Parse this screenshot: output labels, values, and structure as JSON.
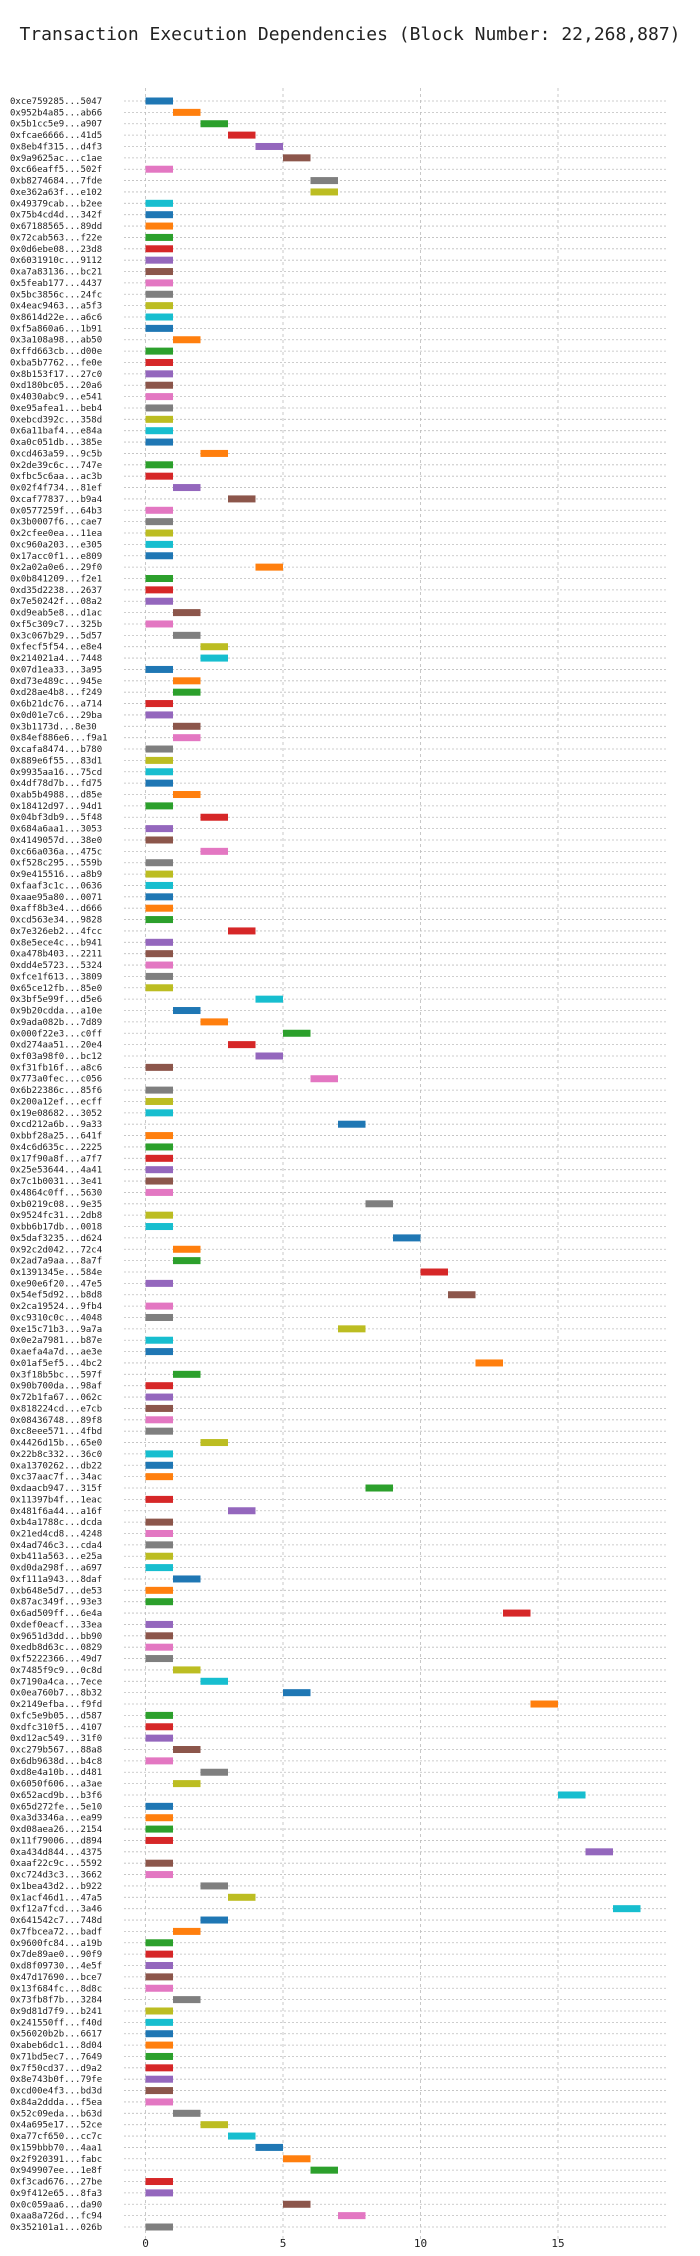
{
  "chart_data": {
    "type": "bar",
    "title": "Transaction Execution Dependencies (Block Number: 22,268,887)",
    "xlabel": "",
    "ylabel": "",
    "xlim": [
      -1,
      19
    ],
    "xticks": [
      0,
      5,
      10,
      15
    ],
    "grid": true,
    "legend": "none",
    "colors": [
      "#1f77b4",
      "#ff7f0e",
      "#2ca02c",
      "#d62728",
      "#9467bd",
      "#8c564b",
      "#e377c2",
      "#7f7f7f",
      "#bcbd22",
      "#17becf"
    ],
    "transactions": [
      {
        "label": "0xce759285...5047",
        "start": 0
      },
      {
        "label": "0x952b4a85...ab66",
        "start": 1
      },
      {
        "label": "0x5b1cc5e9...a907",
        "start": 2
      },
      {
        "label": "0xfcae6666...41d5",
        "start": 3
      },
      {
        "label": "0x8eb4f315...d4f3",
        "start": 4
      },
      {
        "label": "0x9a9625ac...c1ae",
        "start": 5
      },
      {
        "label": "0xc66eaff5...502f",
        "start": 0
      },
      {
        "label": "0xb8274684...7fde",
        "start": 6
      },
      {
        "label": "0xe362a63f...e102",
        "start": 6
      },
      {
        "label": "0x49379cab...b2ee",
        "start": 0
      },
      {
        "label": "0x75b4cd4d...342f",
        "start": 0
      },
      {
        "label": "0x67188565...89dd",
        "start": 0
      },
      {
        "label": "0x72cab563...f22e",
        "start": 0
      },
      {
        "label": "0x0d6ebe08...23d8",
        "start": 0
      },
      {
        "label": "0x6031910c...9112",
        "start": 0
      },
      {
        "label": "0xa7a83136...bc21",
        "start": 0
      },
      {
        "label": "0x5feab177...4437",
        "start": 0
      },
      {
        "label": "0x5bc3856c...24fc",
        "start": 0
      },
      {
        "label": "0x4eac9463...a5f3",
        "start": 0
      },
      {
        "label": "0x8614d22e...a6c6",
        "start": 0
      },
      {
        "label": "0xf5a860a6...1b91",
        "start": 0
      },
      {
        "label": "0x3a108a98...ab50",
        "start": 1
      },
      {
        "label": "0xffd663cb...d00e",
        "start": 0
      },
      {
        "label": "0xba5b7762...fe0e",
        "start": 0
      },
      {
        "label": "0x8b153f17...27c0",
        "start": 0
      },
      {
        "label": "0xd180bc05...20a6",
        "start": 0
      },
      {
        "label": "0x4030abc9...e541",
        "start": 0
      },
      {
        "label": "0xe95afea1...beb4",
        "start": 0
      },
      {
        "label": "0xebcd392c...358d",
        "start": 0
      },
      {
        "label": "0x6a11baf4...e84a",
        "start": 0
      },
      {
        "label": "0xa0c051db...385e",
        "start": 0
      },
      {
        "label": "0xcd463a59...9c5b",
        "start": 2
      },
      {
        "label": "0x2de39c6c...747e",
        "start": 0
      },
      {
        "label": "0xfbc5c6aa...ac3b",
        "start": 0
      },
      {
        "label": "0x02f4f734...81ef",
        "start": 1
      },
      {
        "label": "0xcaf77837...b9a4",
        "start": 3
      },
      {
        "label": "0x0577259f...64b3",
        "start": 0
      },
      {
        "label": "0x3b0007f6...cae7",
        "start": 0
      },
      {
        "label": "0x2cfee0ea...11ea",
        "start": 0
      },
      {
        "label": "0xc960a203...e305",
        "start": 0
      },
      {
        "label": "0x17acc0f1...e809",
        "start": 0
      },
      {
        "label": "0x2a02a0e6...29f0",
        "start": 4
      },
      {
        "label": "0x0b841209...f2e1",
        "start": 0
      },
      {
        "label": "0xd35d2238...2637",
        "start": 0
      },
      {
        "label": "0x7e50242f...08a2",
        "start": 0
      },
      {
        "label": "0xd9eab5e8...d1ac",
        "start": 1
      },
      {
        "label": "0xf5c309c7...325b",
        "start": 0
      },
      {
        "label": "0x3c067b29...5d57",
        "start": 1
      },
      {
        "label": "0xfecf5f54...e8e4",
        "start": 2
      },
      {
        "label": "0x214021a4...7448",
        "start": 2
      },
      {
        "label": "0x07d1ea33...3a95",
        "start": 0
      },
      {
        "label": "0xd73e489c...945e",
        "start": 1
      },
      {
        "label": "0xd28ae4b8...f249",
        "start": 1
      },
      {
        "label": "0x6b21dc76...a714",
        "start": 0
      },
      {
        "label": "0x0d01e7c6...29ba",
        "start": 0
      },
      {
        "label": "0x3b1173d...8e30",
        "start": 1
      },
      {
        "label": "0x84ef886e6...f9a1",
        "start": 1
      },
      {
        "label": "0xcafa8474...b780",
        "start": 0
      },
      {
        "label": "0x889e6f55...83d1",
        "start": 0
      },
      {
        "label": "0x9935aa16...75cd",
        "start": 0
      },
      {
        "label": "0x4df78d7b...fd75",
        "start": 0
      },
      {
        "label": "0xab5b4988...d85e",
        "start": 1
      },
      {
        "label": "0x18412d97...94d1",
        "start": 0
      },
      {
        "label": "0x04bf3db9...5f48",
        "start": 2
      },
      {
        "label": "0x684a6aa1...3053",
        "start": 0
      },
      {
        "label": "0x4149057d...38e0",
        "start": 0
      },
      {
        "label": "0xc66a036a...475c",
        "start": 2
      },
      {
        "label": "0xf528c295...559b",
        "start": 0
      },
      {
        "label": "0x9e415516...a8b9",
        "start": 0
      },
      {
        "label": "0xfaaf3c1c...0636",
        "start": 0
      },
      {
        "label": "0xaae95a80...0071",
        "start": 0
      },
      {
        "label": "0xaff8b3e4...d666",
        "start": 0
      },
      {
        "label": "0xcd563e34...9828",
        "start": 0
      },
      {
        "label": "0x7e326eb2...4fcc",
        "start": 3
      },
      {
        "label": "0x8e5ece4c...b941",
        "start": 0
      },
      {
        "label": "0xa478b403...2211",
        "start": 0
      },
      {
        "label": "0xdd4e5723...5324",
        "start": 0
      },
      {
        "label": "0xfce1f613...3809",
        "start": 0
      },
      {
        "label": "0x65ce12fb...85e0",
        "start": 0
      },
      {
        "label": "0x3bf5e99f...d5e6",
        "start": 4
      },
      {
        "label": "0x9b20cdda...a10e",
        "start": 1
      },
      {
        "label": "0x9ada082b...7d89",
        "start": 2
      },
      {
        "label": "0x000f22e3...c0ff",
        "start": 5
      },
      {
        "label": "0xd274aa51...20e4",
        "start": 3
      },
      {
        "label": "0xf03a98f0...bc12",
        "start": 4
      },
      {
        "label": "0xf31fb16f...a8c6",
        "start": 0
      },
      {
        "label": "0x773a0fec...c056",
        "start": 6
      },
      {
        "label": "0x6b22386c...85f6",
        "start": 0
      },
      {
        "label": "0x200a12ef...ecff",
        "start": 0
      },
      {
        "label": "0x19e08682...3052",
        "start": 0
      },
      {
        "label": "0xcd212a6b...9a33",
        "start": 7
      },
      {
        "label": "0xbbf28a25...641f",
        "start": 0
      },
      {
        "label": "0x4c6d635c...2225",
        "start": 0
      },
      {
        "label": "0x17f90a8f...a7f7",
        "start": 0
      },
      {
        "label": "0x25e53644...4a41",
        "start": 0
      },
      {
        "label": "0x7c1b0031...3e41",
        "start": 0
      },
      {
        "label": "0x4864c0ff...5630",
        "start": 0
      },
      {
        "label": "0xb0219c08...9e35",
        "start": 8
      },
      {
        "label": "0x9524fc31...2db8",
        "start": 0
      },
      {
        "label": "0xbb6b17db...0018",
        "start": 0
      },
      {
        "label": "0x5daf3235...d624",
        "start": 9
      },
      {
        "label": "0x92c2d042...72c4",
        "start": 1
      },
      {
        "label": "0x2ad7a9aa...8a7f",
        "start": 1
      },
      {
        "label": "0x1391345e...584e",
        "start": 10
      },
      {
        "label": "0xe90e6f20...47e5",
        "start": 0
      },
      {
        "label": "0x54ef5d92...b8d8",
        "start": 11
      },
      {
        "label": "0x2ca19524...9fb4",
        "start": 0
      },
      {
        "label": "0xc9310c0c...4048",
        "start": 0
      },
      {
        "label": "0xe15c71b3...9a7a",
        "start": 7
      },
      {
        "label": "0x0e2a7981...b87e",
        "start": 0
      },
      {
        "label": "0xaefa4a7d...ae3e",
        "start": 0
      },
      {
        "label": "0x01af5ef5...4bc2",
        "start": 12
      },
      {
        "label": "0x3f18b5bc...597f",
        "start": 1
      },
      {
        "label": "0x90b700da...98af",
        "start": 0
      },
      {
        "label": "0x72b1fa67...062c",
        "start": 0
      },
      {
        "label": "0x818224cd...e7cb",
        "start": 0
      },
      {
        "label": "0x08436748...89f8",
        "start": 0
      },
      {
        "label": "0xc8eee571...4fbd",
        "start": 0
      },
      {
        "label": "0x4426d15b...65e0",
        "start": 2
      },
      {
        "label": "0x22b8c332...36c0",
        "start": 0
      },
      {
        "label": "0xa1370262...db22",
        "start": 0
      },
      {
        "label": "0xc37aac7f...34ac",
        "start": 0
      },
      {
        "label": "0xdaacb947...315f",
        "start": 8
      },
      {
        "label": "0x11397b4f...1eac",
        "start": 0
      },
      {
        "label": "0x481f6a44...a16f",
        "start": 3
      },
      {
        "label": "0xb4a1788c...dcda",
        "start": 0
      },
      {
        "label": "0x21ed4cd8...4248",
        "start": 0
      },
      {
        "label": "0x4ad746c3...cda4",
        "start": 0
      },
      {
        "label": "0xb411a563...e25a",
        "start": 0
      },
      {
        "label": "0xd0da298f...a697",
        "start": 0
      },
      {
        "label": "0xf111a943...8daf",
        "start": 1
      },
      {
        "label": "0xb648e5d7...de53",
        "start": 0
      },
      {
        "label": "0x87ac349f...93e3",
        "start": 0
      },
      {
        "label": "0x6ad509ff...6e4a",
        "start": 13
      },
      {
        "label": "0xdef0eacf...33ea",
        "start": 0
      },
      {
        "label": "0x9651d3dd...bb90",
        "start": 0
      },
      {
        "label": "0xedb8d63c...0829",
        "start": 0
      },
      {
        "label": "0xf5222366...49d7",
        "start": 0
      },
      {
        "label": "0x7485f9c9...0c8d",
        "start": 1
      },
      {
        "label": "0x7190a4ca...7ece",
        "start": 2
      },
      {
        "label": "0x0ea760b7...8b32",
        "start": 5
      },
      {
        "label": "0x2149efba...f9fd",
        "start": 14
      },
      {
        "label": "0xfc5e9b05...d587",
        "start": 0
      },
      {
        "label": "0xdfc310f5...4107",
        "start": 0
      },
      {
        "label": "0xd12ac549...31f0",
        "start": 0
      },
      {
        "label": "0xc279b567...88a8",
        "start": 1
      },
      {
        "label": "0x6db9638d...b4c8",
        "start": 0
      },
      {
        "label": "0xd8e4a10b...d481",
        "start": 2
      },
      {
        "label": "0x6050f606...a3ae",
        "start": 1
      },
      {
        "label": "0x652acd9b...b3f6",
        "start": 15
      },
      {
        "label": "0x65d272fe...5e10",
        "start": 0
      },
      {
        "label": "0xa3d3346a...ea99",
        "start": 0
      },
      {
        "label": "0xd08aea26...2154",
        "start": 0
      },
      {
        "label": "0x11f79006...d894",
        "start": 0
      },
      {
        "label": "0xa434d844...4375",
        "start": 16
      },
      {
        "label": "0xaaf22c9c...5592",
        "start": 0
      },
      {
        "label": "0xc724d3c3...3662",
        "start": 0
      },
      {
        "label": "0x1bea43d2...b922",
        "start": 2
      },
      {
        "label": "0x1acf46d1...47a5",
        "start": 3
      },
      {
        "label": "0xf12a7fcd...3a46",
        "start": 17
      },
      {
        "label": "0x641542c7...748d",
        "start": 2
      },
      {
        "label": "0x7fbcea72...badf",
        "start": 1
      },
      {
        "label": "0x9600fc84...a19b",
        "start": 0
      },
      {
        "label": "0x7de89ae0...90f9",
        "start": 0
      },
      {
        "label": "0xd8f09730...4e5f",
        "start": 0
      },
      {
        "label": "0x47d17690...bce7",
        "start": 0
      },
      {
        "label": "0x13f684fc...8d8c",
        "start": 0
      },
      {
        "label": "0x73fb8f7b...3284",
        "start": 1
      },
      {
        "label": "0x9d81d7f9...b241",
        "start": 0
      },
      {
        "label": "0x241550ff...f40d",
        "start": 0
      },
      {
        "label": "0x56020b2b...6617",
        "start": 0
      },
      {
        "label": "0xabeb6dc1...8d04",
        "start": 0
      },
      {
        "label": "0x71bd5ec7...7649",
        "start": 0
      },
      {
        "label": "0x7f50cd37...d9a2",
        "start": 0
      },
      {
        "label": "0x8e743b0f...79fe",
        "start": 0
      },
      {
        "label": "0xcd00e4f3...bd3d",
        "start": 0
      },
      {
        "label": "0x84a2ddda...f5ea",
        "start": 0
      },
      {
        "label": "0x52c09eda...b63d",
        "start": 1
      },
      {
        "label": "0x4a695e17...52ce",
        "start": 2
      },
      {
        "label": "0xa77cf650...cc7c",
        "start": 3
      },
      {
        "label": "0x159bbb70...4aa1",
        "start": 4
      },
      {
        "label": "0x2f920391...fabc",
        "start": 5
      },
      {
        "label": "0x949907ee...1e8f",
        "start": 6
      },
      {
        "label": "0xf3cad676...27be",
        "start": 0
      },
      {
        "label": "0x9f412e65...8fa3",
        "start": 0
      },
      {
        "label": "0x0c059aa6...da90",
        "start": 5
      },
      {
        "label": "0xaa8a726d...fc94",
        "start": 7
      },
      {
        "label": "0x352101a1...026b",
        "start": 0
      }
    ]
  }
}
